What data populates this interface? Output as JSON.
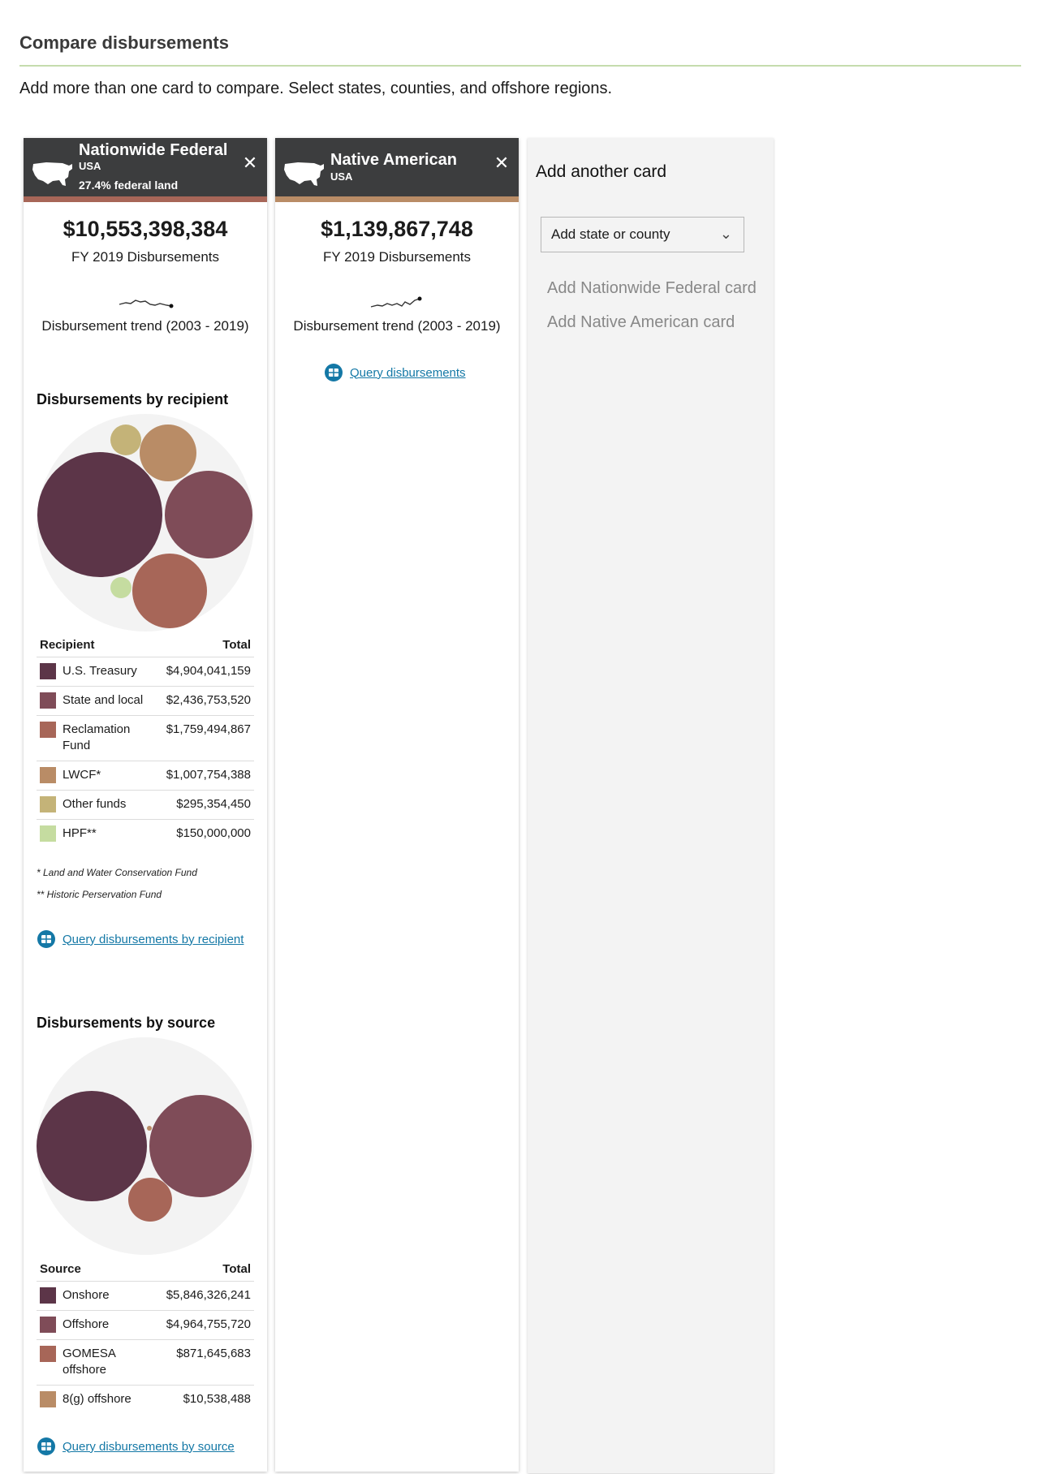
{
  "page": {
    "title": "Compare disbursements",
    "intro": "Add more than one card to compare. Select states, counties, and offshore regions."
  },
  "colors": {
    "header_bg": "#3c3d3e",
    "rule": "#c5dcae",
    "link": "#1478a6",
    "us_treasury": "#5c3548",
    "state_local": "#7f4c58",
    "reclamation": "#a76658",
    "lwcf": "#b98c66",
    "other_funds": "#c4b378",
    "hpf": "#c5dca0"
  },
  "cards": [
    {
      "name": "Nationwide Federal",
      "region": "USA",
      "land": "27.4% federal land",
      "accent": "#a76658",
      "total": "$10,553,398,384",
      "total_label": "FY 2019 Disbursements",
      "trend_label": "Disbursement trend (2003 - 2019)",
      "recipient": {
        "title": "Disbursements by recipient",
        "col_name": "Recipient",
        "col_total": "Total",
        "rows": [
          {
            "name": "U.S. Treasury",
            "amount": "$4,904,041,159",
            "color": "#5c3548",
            "value": 4904041159
          },
          {
            "name": "State and local",
            "amount": "$2,436,753,520",
            "color": "#7f4c58",
            "value": 2436753520
          },
          {
            "name": "Reclamation Fund",
            "amount": "$1,759,494,867",
            "color": "#a76658",
            "value": 1759494867
          },
          {
            "name": "LWCF*",
            "amount": "$1,007,754,388",
            "color": "#b98c66",
            "value": 1007754388
          },
          {
            "name": "Other funds",
            "amount": "$295,354,450",
            "color": "#c4b378",
            "value": 295354450
          },
          {
            "name": "HPF**",
            "amount": "$150,000,000",
            "color": "#c5dca0",
            "value": 150000000
          }
        ],
        "footnote1": "* Land and Water Conservation Fund",
        "footnote2": "** Historic Perservation Fund",
        "query": "Query disbursements by recipient"
      },
      "source": {
        "title": "Disbursements by source",
        "col_name": "Source",
        "col_total": "Total",
        "rows": [
          {
            "name": "Onshore",
            "amount": "$5,846,326,241",
            "color": "#5c3548",
            "value": 5846326241
          },
          {
            "name": "Offshore",
            "amount": "$4,964,755,720",
            "color": "#7f4c58",
            "value": 4964755720
          },
          {
            "name": "GOMESA offshore",
            "amount": "$871,645,683",
            "color": "#a76658",
            "value": 871645683
          },
          {
            "name": "8(g) offshore",
            "amount": "$10,538,488",
            "color": "#b98c66",
            "value": 10538488
          }
        ],
        "query": "Query disbursements by source"
      }
    },
    {
      "name": "Native American",
      "region": "USA",
      "accent": "#b98c66",
      "total": "$1,139,867,748",
      "total_label": "FY 2019 Disbursements",
      "trend_label": "Disbursement trend (2003 - 2019)",
      "query": "Query disbursements"
    }
  ],
  "add_card": {
    "title": "Add another card",
    "select_placeholder": "Add state or county",
    "link_federal": "Add Nationwide Federal card",
    "link_native": "Add Native American card"
  },
  "icons": {
    "close": "close-icon",
    "map": "usa-map-icon",
    "table": "table-icon",
    "chevron": "chevron-down-icon"
  }
}
